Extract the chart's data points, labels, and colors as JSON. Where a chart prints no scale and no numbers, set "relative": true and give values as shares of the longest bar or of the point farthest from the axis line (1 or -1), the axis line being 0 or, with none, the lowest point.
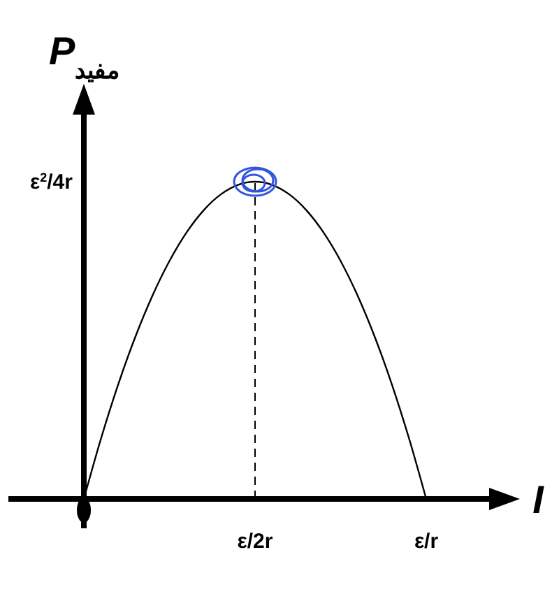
{
  "chart_data": {
    "type": "line",
    "xlabel": "I",
    "ylabel": "P$_{مفيد}$",
    "relative": true,
    "categories": [
      null,
      null,
      null,
      null,
      null,
      null,
      null,
      null,
      null,
      null,
      null,
      null,
      null,
      null,
      null,
      null,
      null,
      null,
      null,
      null,
      null
    ],
    "series": [
      {
        "color": "#000000",
        "values": [
          0,
          0.19,
          0.36,
          0.51,
          0.64,
          0.75,
          0.84,
          0.91,
          0.96,
          0.99,
          1,
          0.99,
          0.96,
          0.91,
          0.84,
          0.75,
          0.64,
          0.51,
          0.36,
          0.19,
          0
        ]
      }
    ],
    "annotations": [
      "ε/2r",
      "ε/r",
      "ε$^{2}$/4r"
    ],
    "grid": false,
    "marker": "none",
    "line_style": "solid"
  }
}
